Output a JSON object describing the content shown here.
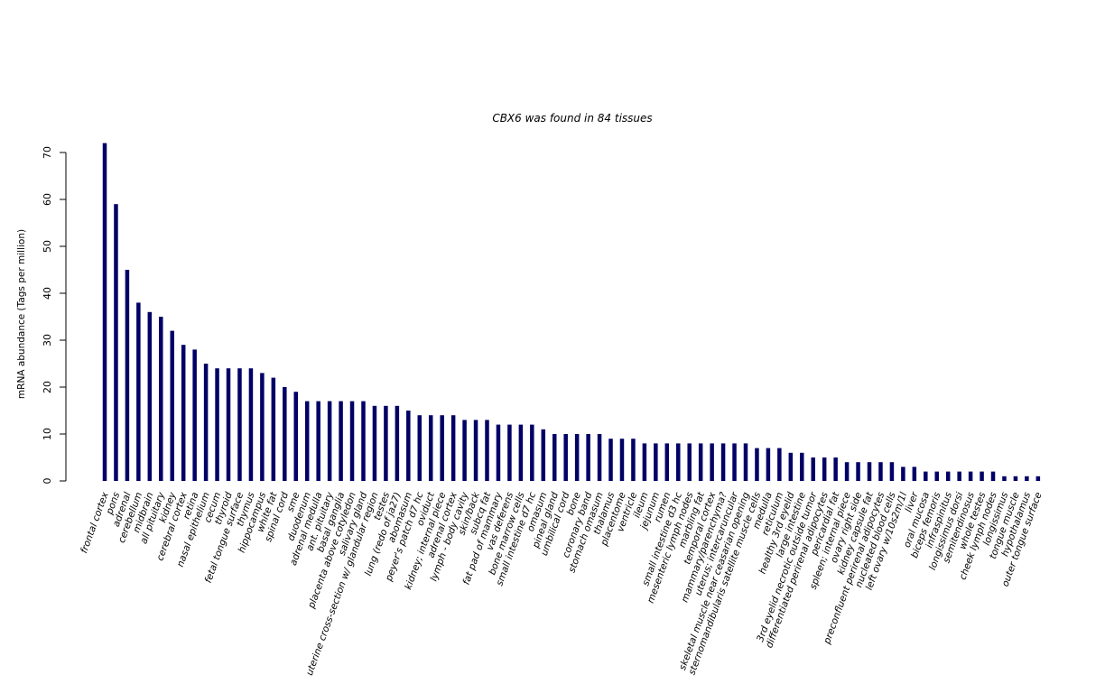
{
  "chart_data": {
    "type": "bar",
    "title": "CBX6  was found in  84  tissues",
    "ylabel": "mRNA abundance (Tags per million)",
    "xlabel": "",
    "ylim": [
      0,
      72
    ],
    "yticks": [
      0,
      10,
      20,
      30,
      40,
      50,
      60,
      70
    ],
    "grid": false,
    "bar_color": "#000066",
    "categories": [
      "frontal cortex",
      "pons",
      "adrenal",
      "cerebellum",
      "midbrain",
      "all pituitary",
      "kidney",
      "cerebral cortex",
      "retina",
      "nasal epithelium",
      "cecum",
      "thyroid",
      "fetal tongue surface",
      "thymus",
      "hippocampus",
      "white fat",
      "spinal cord",
      "sme",
      "duodenum",
      "adrenal medulla",
      "ant. pituitary",
      "basal ganglia",
      "placenta above cotyledon",
      "salivary gland",
      "uterine cross-section w/ glandular region",
      "testes",
      "lung (redo of ja27)",
      "abomasum",
      "peyer's patch d7 hc",
      "oviduct",
      "kidney; internal piece",
      "adrenal cortex",
      "lymph - body cavity",
      "skin/back",
      "subcq fat",
      "fat pad of mammary",
      "vas deferens",
      "bone marrow cells",
      "small intestine d7 hc",
      "omasum",
      "pineal gland",
      "umbilical cord",
      "bone",
      "coronary band",
      "stomach omasum",
      "thalamus",
      "placentome",
      "ventricle",
      "ileum",
      "jejunum",
      "rumen",
      "small intestine d3 hc",
      "mesenteric lymph nodes",
      "marbling fat",
      "temporal cortex",
      "mammary/parenchyma?",
      "uterus; intercaruncular",
      "skeletal muscle near ceasarian opening",
      "sternomandibularis satellite muscle cells",
      "medulla",
      "reticulum",
      "healthy 3rd eyelid",
      "large intestine",
      "3rd eyelid necrotic outside tumor",
      "differentiated perirenal adipocytes",
      "pericardial fat",
      "spleen; internal piece",
      "ovary right side",
      "kidney capsule fat",
      "preconfluent perirenal adipocytes",
      "nucleated blood cells",
      "left ovary w/10s2m/1l",
      "liver",
      "oral mucosa",
      "biceps femoris",
      "infraspinitus",
      "longissimus dorsi",
      "semitendinosus",
      "whole testes",
      "cheek lymph nodes",
      "longissimus",
      "tongue muscle",
      "hypothalamus",
      "outer tongue surface"
    ],
    "values": [
      72,
      59,
      45,
      38,
      36,
      35,
      32,
      29,
      28,
      25,
      24,
      24,
      24,
      24,
      23,
      22,
      20,
      19,
      17,
      17,
      17,
      17,
      17,
      17,
      16,
      16,
      16,
      15,
      14,
      14,
      14,
      14,
      13,
      13,
      13,
      12,
      12,
      12,
      12,
      11,
      10,
      10,
      10,
      10,
      10,
      9,
      9,
      9,
      8,
      8,
      8,
      8,
      8,
      8,
      8,
      8,
      8,
      8,
      7,
      7,
      7,
      6,
      6,
      5,
      5,
      5,
      4,
      4,
      4,
      4,
      4,
      3,
      3,
      2,
      2,
      2,
      2,
      2,
      2,
      2,
      1,
      1,
      1,
      1
    ]
  }
}
